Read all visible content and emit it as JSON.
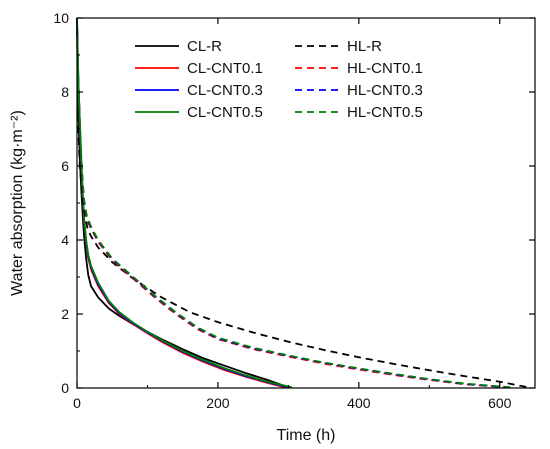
{
  "chart_data": {
    "type": "line",
    "title": "",
    "xlabel": "Time (h)",
    "ylabel": "Water absorption (kg·m⁻²)",
    "xlim": [
      0,
      650
    ],
    "ylim": [
      0,
      10
    ],
    "x_ticks": [
      0,
      200,
      400,
      600
    ],
    "y_ticks": [
      0,
      2,
      4,
      6,
      8,
      10
    ],
    "grid": false,
    "legend_placement": "top-right",
    "series": [
      {
        "name": "CL-R",
        "color": "#000000",
        "dash": "solid",
        "points": [
          [
            0,
            10
          ],
          [
            1,
            8.4
          ],
          [
            2,
            7.4
          ],
          [
            4,
            6.2
          ],
          [
            6,
            5.4
          ],
          [
            8,
            4.7
          ],
          [
            10,
            4.1
          ],
          [
            13,
            3.5
          ],
          [
            16,
            3.05
          ],
          [
            20,
            2.75
          ],
          [
            30,
            2.45
          ],
          [
            45,
            2.15
          ],
          [
            60,
            1.95
          ],
          [
            80,
            1.72
          ],
          [
            100,
            1.52
          ],
          [
            120,
            1.32
          ],
          [
            150,
            1.05
          ],
          [
            180,
            0.8
          ],
          [
            210,
            0.6
          ],
          [
            240,
            0.4
          ],
          [
            270,
            0.22
          ],
          [
            300,
            0.02
          ]
        ]
      },
      {
        "name": "CL-CNT0.1",
        "color": "#ff0000",
        "dash": "solid",
        "points": [
          [
            0,
            10
          ],
          [
            1,
            9.0
          ],
          [
            2,
            8.2
          ],
          [
            4,
            7.1
          ],
          [
            6,
            6.1
          ],
          [
            8,
            5.2
          ],
          [
            10,
            4.5
          ],
          [
            13,
            3.9
          ],
          [
            16,
            3.5
          ],
          [
            20,
            3.2
          ],
          [
            30,
            2.75
          ],
          [
            45,
            2.3
          ],
          [
            60,
            2.0
          ],
          [
            80,
            1.72
          ],
          [
            100,
            1.48
          ],
          [
            120,
            1.25
          ],
          [
            150,
            0.95
          ],
          [
            180,
            0.7
          ],
          [
            210,
            0.48
          ],
          [
            240,
            0.3
          ],
          [
            270,
            0.14
          ],
          [
            295,
            0.02
          ]
        ]
      },
      {
        "name": "CL-CNT0.3",
        "color": "#0000ff",
        "dash": "solid",
        "points": [
          [
            0,
            10
          ],
          [
            1,
            9.05
          ],
          [
            2,
            8.25
          ],
          [
            4,
            7.15
          ],
          [
            6,
            6.15
          ],
          [
            8,
            5.25
          ],
          [
            10,
            4.55
          ],
          [
            13,
            3.95
          ],
          [
            16,
            3.55
          ],
          [
            20,
            3.25
          ],
          [
            30,
            2.8
          ],
          [
            45,
            2.33
          ],
          [
            60,
            2.02
          ],
          [
            80,
            1.74
          ],
          [
            100,
            1.5
          ],
          [
            120,
            1.28
          ],
          [
            150,
            0.98
          ],
          [
            180,
            0.73
          ],
          [
            210,
            0.51
          ],
          [
            240,
            0.32
          ],
          [
            270,
            0.16
          ],
          [
            300,
            0.02
          ]
        ]
      },
      {
        "name": "CL-CNT0.5",
        "color": "#008000",
        "dash": "solid",
        "points": [
          [
            0,
            10
          ],
          [
            1,
            9.1
          ],
          [
            2,
            8.3
          ],
          [
            4,
            7.2
          ],
          [
            6,
            6.2
          ],
          [
            8,
            5.3
          ],
          [
            10,
            4.6
          ],
          [
            13,
            4.0
          ],
          [
            16,
            3.6
          ],
          [
            20,
            3.3
          ],
          [
            30,
            2.85
          ],
          [
            45,
            2.36
          ],
          [
            60,
            2.05
          ],
          [
            80,
            1.76
          ],
          [
            100,
            1.52
          ],
          [
            120,
            1.3
          ],
          [
            150,
            1.0
          ],
          [
            180,
            0.75
          ],
          [
            210,
            0.53
          ],
          [
            240,
            0.34
          ],
          [
            270,
            0.17
          ],
          [
            305,
            0.02
          ]
        ]
      },
      {
        "name": "HL-R",
        "color": "#000000",
        "dash": "dashed",
        "points": [
          [
            0,
            10
          ],
          [
            1,
            8.0
          ],
          [
            2,
            6.9
          ],
          [
            4,
            6.0
          ],
          [
            7,
            5.3
          ],
          [
            10,
            4.8
          ],
          [
            15,
            4.3
          ],
          [
            20,
            4.1
          ],
          [
            30,
            3.8
          ],
          [
            50,
            3.4
          ],
          [
            80,
            2.95
          ],
          [
            120,
            2.45
          ],
          [
            160,
            2.05
          ],
          [
            200,
            1.78
          ],
          [
            250,
            1.5
          ],
          [
            300,
            1.25
          ],
          [
            350,
            1.03
          ],
          [
            400,
            0.83
          ],
          [
            450,
            0.65
          ],
          [
            500,
            0.48
          ],
          [
            550,
            0.32
          ],
          [
            600,
            0.17
          ],
          [
            640,
            0.02
          ]
        ]
      },
      {
        "name": "HL-CNT0.1",
        "color": "#ff0000",
        "dash": "dashed",
        "points": [
          [
            0,
            10
          ],
          [
            1,
            9.0
          ],
          [
            2,
            8.2
          ],
          [
            4,
            7.1
          ],
          [
            6,
            6.2
          ],
          [
            8,
            5.5
          ],
          [
            10,
            5.0
          ],
          [
            14,
            4.55
          ],
          [
            20,
            4.3
          ],
          [
            30,
            3.95
          ],
          [
            50,
            3.45
          ],
          [
            80,
            2.95
          ],
          [
            110,
            2.45
          ],
          [
            140,
            2.0
          ],
          [
            170,
            1.6
          ],
          [
            200,
            1.32
          ],
          [
            250,
            1.05
          ],
          [
            300,
            0.85
          ],
          [
            350,
            0.66
          ],
          [
            400,
            0.5
          ],
          [
            450,
            0.35
          ],
          [
            500,
            0.22
          ],
          [
            550,
            0.1
          ],
          [
            610,
            0.02
          ]
        ]
      },
      {
        "name": "HL-CNT0.3",
        "color": "#0000ff",
        "dash": "dashed",
        "points": [
          [
            0,
            10
          ],
          [
            1,
            9.05
          ],
          [
            2,
            8.25
          ],
          [
            4,
            7.15
          ],
          [
            6,
            6.25
          ],
          [
            8,
            5.55
          ],
          [
            10,
            5.05
          ],
          [
            14,
            4.6
          ],
          [
            20,
            4.33
          ],
          [
            30,
            3.98
          ],
          [
            50,
            3.48
          ],
          [
            80,
            2.98
          ],
          [
            110,
            2.48
          ],
          [
            140,
            2.03
          ],
          [
            170,
            1.63
          ],
          [
            200,
            1.34
          ],
          [
            250,
            1.07
          ],
          [
            300,
            0.87
          ],
          [
            350,
            0.68
          ],
          [
            400,
            0.52
          ],
          [
            450,
            0.37
          ],
          [
            500,
            0.23
          ],
          [
            550,
            0.11
          ],
          [
            610,
            0.02
          ]
        ]
      },
      {
        "name": "HL-CNT0.5",
        "color": "#008000",
        "dash": "dashed",
        "points": [
          [
            0,
            10
          ],
          [
            1,
            9.1
          ],
          [
            2,
            8.3
          ],
          [
            4,
            7.2
          ],
          [
            6,
            6.3
          ],
          [
            8,
            5.6
          ],
          [
            10,
            5.1
          ],
          [
            14,
            4.65
          ],
          [
            20,
            4.36
          ],
          [
            30,
            4.0
          ],
          [
            50,
            3.5
          ],
          [
            80,
            3.0
          ],
          [
            110,
            2.5
          ],
          [
            140,
            2.05
          ],
          [
            170,
            1.65
          ],
          [
            200,
            1.36
          ],
          [
            250,
            1.09
          ],
          [
            300,
            0.88
          ],
          [
            350,
            0.69
          ],
          [
            400,
            0.53
          ],
          [
            450,
            0.38
          ],
          [
            500,
            0.24
          ],
          [
            550,
            0.12
          ],
          [
            615,
            0.02
          ]
        ]
      }
    ]
  }
}
